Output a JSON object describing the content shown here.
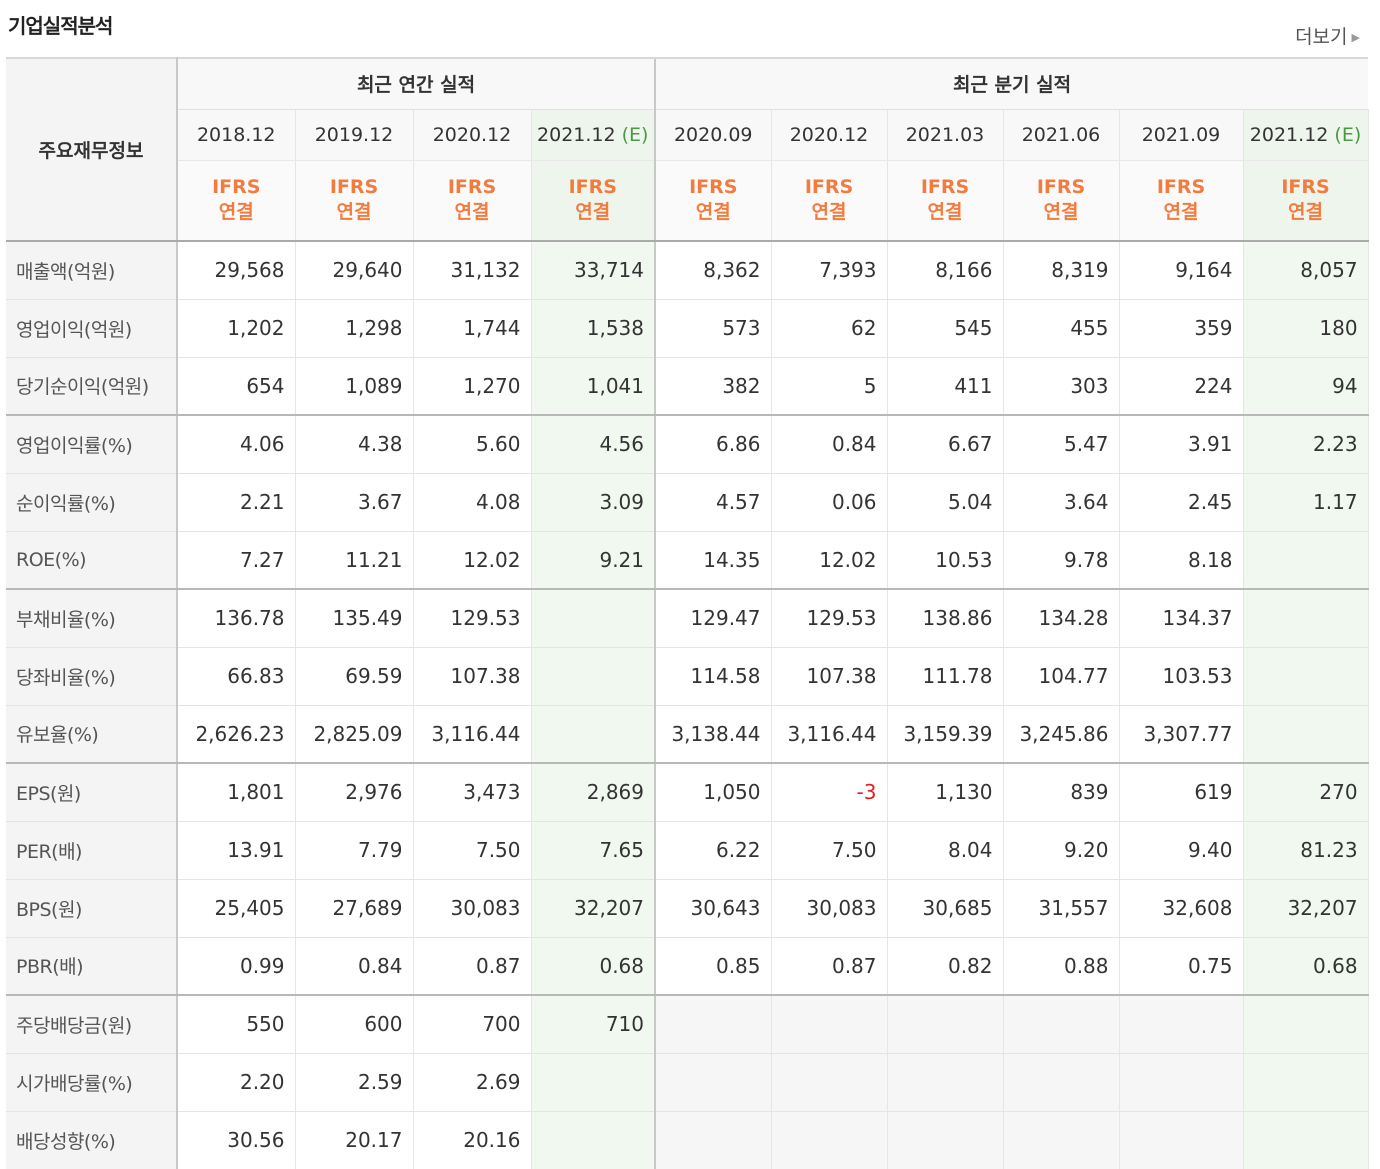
{
  "title": "기업실적분석",
  "more": "더보기",
  "corner": "주요재무정보",
  "groups": {
    "annual": "최근 연간 실적",
    "quarterly": "최근 분기 실적"
  },
  "periods": [
    {
      "date": "2018.12",
      "est": "",
      "ifrs1": "IFRS",
      "ifrs2": "연결"
    },
    {
      "date": "2019.12",
      "est": "",
      "ifrs1": "IFRS",
      "ifrs2": "연결"
    },
    {
      "date": "2020.12",
      "est": "",
      "ifrs1": "IFRS",
      "ifrs2": "연결"
    },
    {
      "date": "2021.12",
      "est": "(E)",
      "ifrs1": "IFRS",
      "ifrs2": "연결"
    },
    {
      "date": "2020.09",
      "est": "",
      "ifrs1": "IFRS",
      "ifrs2": "연결"
    },
    {
      "date": "2020.12",
      "est": "",
      "ifrs1": "IFRS",
      "ifrs2": "연결"
    },
    {
      "date": "2021.03",
      "est": "",
      "ifrs1": "IFRS",
      "ifrs2": "연결"
    },
    {
      "date": "2021.06",
      "est": "",
      "ifrs1": "IFRS",
      "ifrs2": "연결"
    },
    {
      "date": "2021.09",
      "est": "",
      "ifrs1": "IFRS",
      "ifrs2": "연결"
    },
    {
      "date": "2021.12",
      "est": "(E)",
      "ifrs1": "IFRS",
      "ifrs2": "연결"
    }
  ],
  "rows": [
    {
      "label": "매출액(억원)",
      "values": [
        "29,568",
        "29,640",
        "31,132",
        "33,714",
        "8,362",
        "7,393",
        "8,166",
        "8,319",
        "9,164",
        "8,057"
      ]
    },
    {
      "label": "영업이익(억원)",
      "values": [
        "1,202",
        "1,298",
        "1,744",
        "1,538",
        "573",
        "62",
        "545",
        "455",
        "359",
        "180"
      ]
    },
    {
      "label": "당기순이익(억원)",
      "values": [
        "654",
        "1,089",
        "1,270",
        "1,041",
        "382",
        "5",
        "411",
        "303",
        "224",
        "94"
      ]
    },
    {
      "label": "영업이익률(%)",
      "values": [
        "4.06",
        "4.38",
        "5.60",
        "4.56",
        "6.86",
        "0.84",
        "6.67",
        "5.47",
        "3.91",
        "2.23"
      ]
    },
    {
      "label": "순이익률(%)",
      "values": [
        "2.21",
        "3.67",
        "4.08",
        "3.09",
        "4.57",
        "0.06",
        "5.04",
        "3.64",
        "2.45",
        "1.17"
      ]
    },
    {
      "label": "ROE(%)",
      "values": [
        "7.27",
        "11.21",
        "12.02",
        "9.21",
        "14.35",
        "12.02",
        "10.53",
        "9.78",
        "8.18",
        ""
      ]
    },
    {
      "label": "부채비율(%)",
      "values": [
        "136.78",
        "135.49",
        "129.53",
        "",
        "129.47",
        "129.53",
        "138.86",
        "134.28",
        "134.37",
        ""
      ]
    },
    {
      "label": "당좌비율(%)",
      "values": [
        "66.83",
        "69.59",
        "107.38",
        "",
        "114.58",
        "107.38",
        "111.78",
        "104.77",
        "103.53",
        ""
      ]
    },
    {
      "label": "유보율(%)",
      "values": [
        "2,626.23",
        "2,825.09",
        "3,116.44",
        "",
        "3,138.44",
        "3,116.44",
        "3,159.39",
        "3,245.86",
        "3,307.77",
        ""
      ]
    },
    {
      "label": "EPS(원)",
      "values": [
        "1,801",
        "2,976",
        "3,473",
        "2,869",
        "1,050",
        "-3",
        "1,130",
        "839",
        "619",
        "270"
      ]
    },
    {
      "label": "PER(배)",
      "values": [
        "13.91",
        "7.79",
        "7.50",
        "7.65",
        "6.22",
        "7.50",
        "8.04",
        "9.20",
        "9.40",
        "81.23"
      ]
    },
    {
      "label": "BPS(원)",
      "values": [
        "25,405",
        "27,689",
        "30,083",
        "32,207",
        "30,643",
        "30,083",
        "30,685",
        "31,557",
        "32,608",
        "32,207"
      ]
    },
    {
      "label": "PBR(배)",
      "values": [
        "0.99",
        "0.84",
        "0.87",
        "0.68",
        "0.85",
        "0.87",
        "0.82",
        "0.88",
        "0.75",
        "0.68"
      ]
    },
    {
      "label": "주당배당금(원)",
      "values": [
        "550",
        "600",
        "700",
        "710",
        "",
        "",
        "",
        "",
        "",
        ""
      ]
    },
    {
      "label": "시가배당률(%)",
      "values": [
        "2.20",
        "2.59",
        "2.69",
        "",
        "",
        "",
        "",
        "",
        "",
        ""
      ]
    },
    {
      "label": "배당성향(%)",
      "values": [
        "30.56",
        "20.17",
        "20.16",
        "",
        "",
        "",
        "",
        "",
        "",
        ""
      ]
    }
  ],
  "colors": {
    "ifrs": "#f27b3e",
    "estimate": "#4a9a44",
    "negative": "#e02020"
  }
}
